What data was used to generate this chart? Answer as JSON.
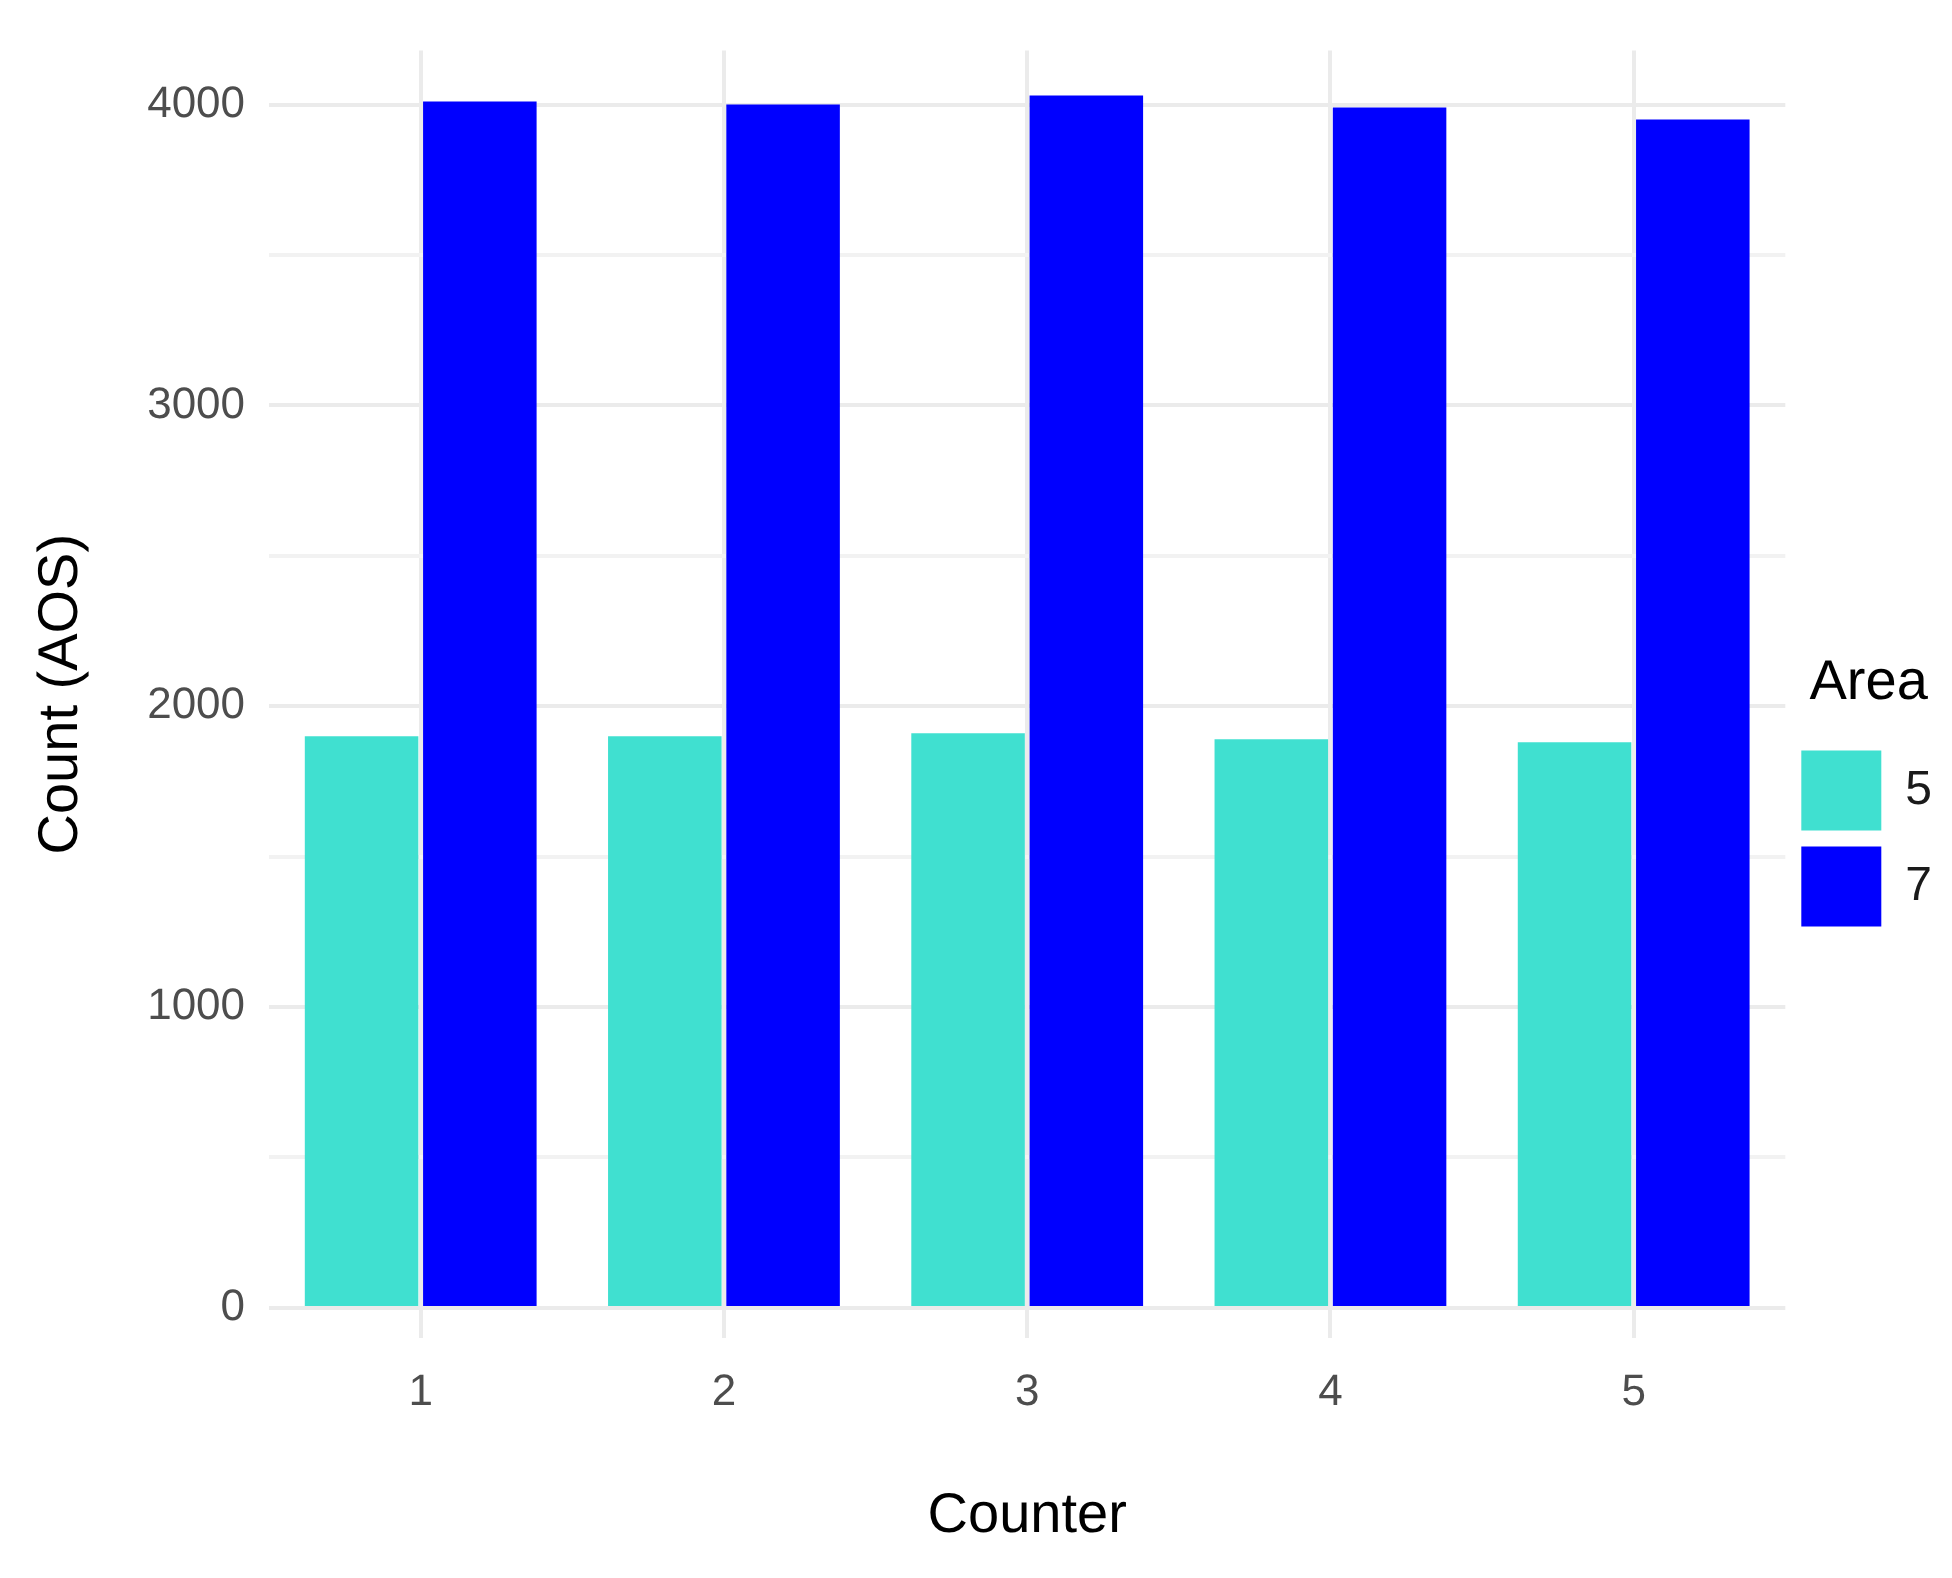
{
  "chart_data": {
    "type": "bar",
    "xlabel": "Counter",
    "ylabel": "Count (AOS)",
    "legend_title": "Area",
    "categories": [
      "1",
      "2",
      "3",
      "4",
      "5"
    ],
    "series": [
      {
        "name": "5",
        "color": "#40e0d0",
        "values": [
          1900,
          1900,
          1910,
          1890,
          1880
        ]
      },
      {
        "name": "7",
        "color": "#0000ff",
        "values": [
          4010,
          4000,
          4030,
          3990,
          3950
        ]
      }
    ],
    "ylim": [
      -100,
      4180
    ],
    "yticks": [
      0,
      {
        "value": 500,
        "label": null
      },
      1000,
      {
        "value": 1500,
        "label": null
      },
      2000,
      {
        "value": 2500,
        "label": null
      },
      3000,
      {
        "value": 3500,
        "label": null
      },
      4000
    ],
    "grid": true,
    "legend": "right"
  }
}
